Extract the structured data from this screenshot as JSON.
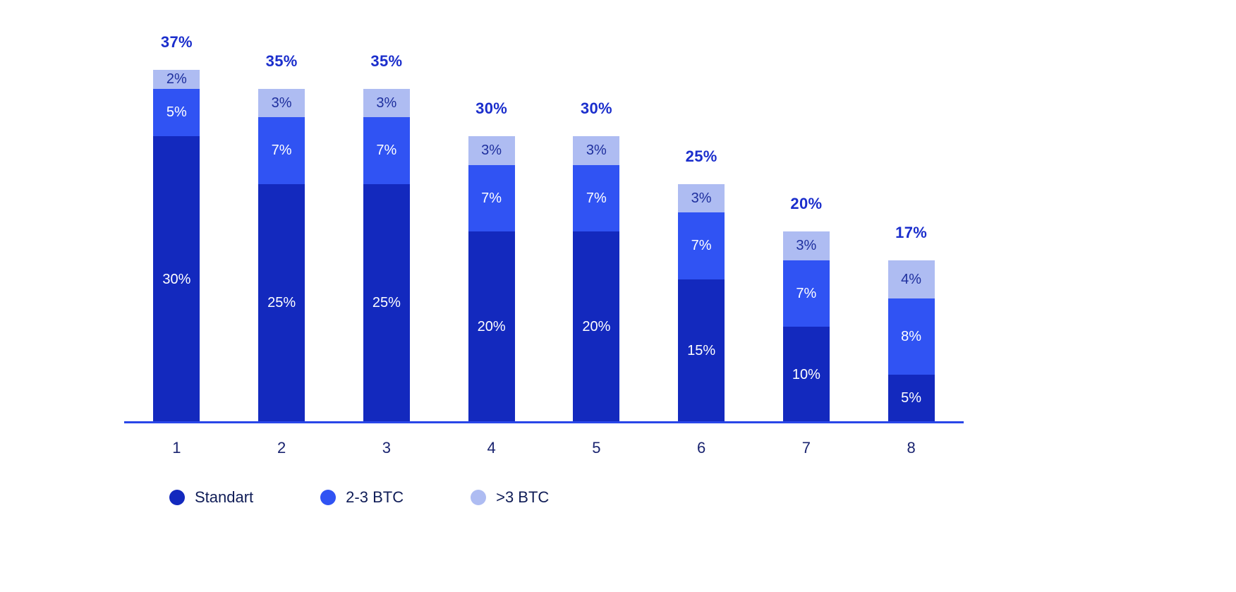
{
  "chart_data": {
    "type": "bar",
    "stacked": true,
    "title": "",
    "xlabel": "",
    "ylabel": "",
    "grid": false,
    "legend_position": "bottom",
    "ylim": [
      0,
      40
    ],
    "categories": [
      "1",
      "2",
      "3",
      "4",
      "5",
      "6",
      "7",
      "8"
    ],
    "series": [
      {
        "name": "Standart",
        "color": "#1329BE",
        "label_color": "#ffffff",
        "values": [
          30,
          25,
          25,
          20,
          20,
          15,
          10,
          5
        ]
      },
      {
        "name": "2-3 BTC",
        "color": "#3053F3",
        "label_color": "#ffffff",
        "values": [
          5,
          7,
          7,
          7,
          7,
          7,
          7,
          8
        ]
      },
      {
        "name": ">3 BTC",
        "color": "#AEBCF2",
        "label_color": "#1E2F9E",
        "values": [
          2,
          3,
          3,
          3,
          3,
          3,
          3,
          4
        ]
      }
    ],
    "totals": [
      "37%",
      "35%",
      "35%",
      "30%",
      "30%",
      "25%",
      "20%",
      "17%"
    ],
    "segment_label_suffix": "%"
  },
  "legend": {
    "items": [
      {
        "label": "Standart",
        "color": "#1329BE"
      },
      {
        "label": "2-3 BTC",
        "color": "#3053F3"
      },
      {
        "label": ">3 BTC",
        "color": "#AEBCF2"
      }
    ]
  },
  "colors": {
    "total_label": "#1B2ECC",
    "axis_line": "#2946E8",
    "x_axis_label": "#1A2470",
    "legend_label": "#101D57",
    "background": "#ffffff"
  }
}
